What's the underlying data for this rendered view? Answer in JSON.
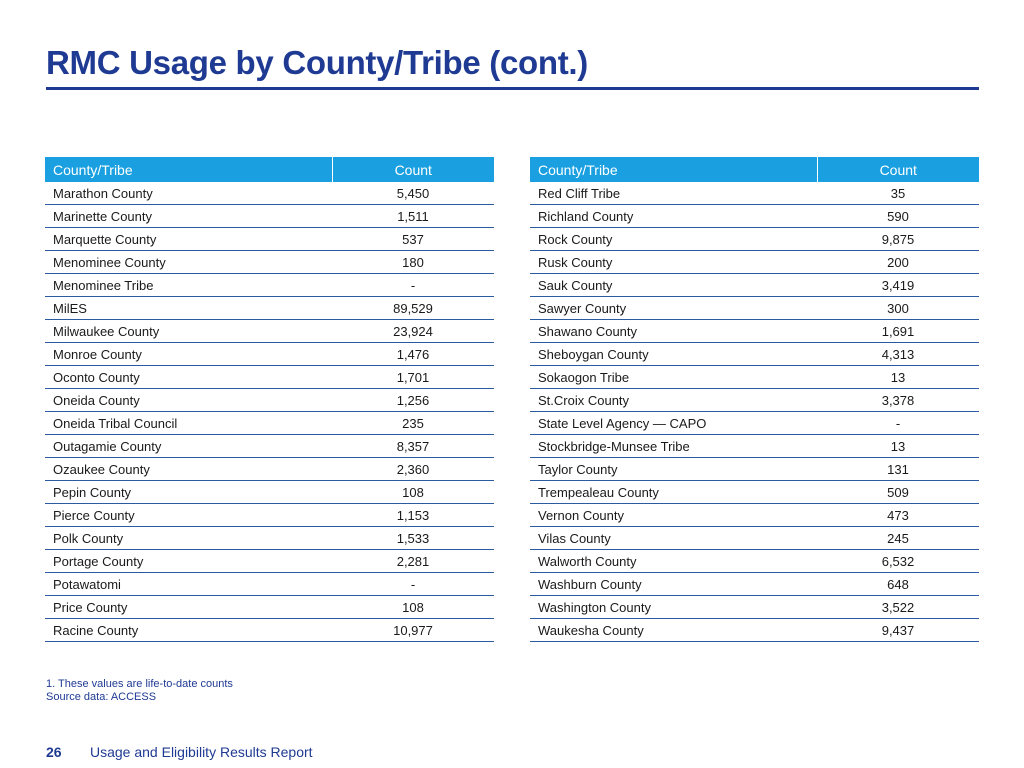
{
  "title": "RMC Usage by County/Tribe (cont.)",
  "tables": [
    {
      "headers": [
        "County/Tribe",
        "Count"
      ],
      "rows": [
        [
          "Marathon County",
          "5,450"
        ],
        [
          "Marinette County",
          "1,511"
        ],
        [
          "Marquette County",
          "537"
        ],
        [
          "Menominee County",
          "180"
        ],
        [
          "Menominee Tribe",
          "-"
        ],
        [
          "MilES",
          "89,529"
        ],
        [
          "Milwaukee County",
          "23,924"
        ],
        [
          "Monroe County",
          "1,476"
        ],
        [
          "Oconto County",
          "1,701"
        ],
        [
          "Oneida County",
          "1,256"
        ],
        [
          "Oneida Tribal Council",
          "235"
        ],
        [
          "Outagamie County",
          "8,357"
        ],
        [
          "Ozaukee County",
          "2,360"
        ],
        [
          "Pepin County",
          "108"
        ],
        [
          "Pierce County",
          "1,153"
        ],
        [
          "Polk County",
          "1,533"
        ],
        [
          "Portage County",
          "2,281"
        ],
        [
          "Potawatomi",
          "-"
        ],
        [
          "Price County",
          "108"
        ],
        [
          "Racine County",
          "10,977"
        ]
      ]
    },
    {
      "headers": [
        "County/Tribe",
        "Count"
      ],
      "rows": [
        [
          "Red Cliff Tribe",
          "35"
        ],
        [
          "Richland County",
          "590"
        ],
        [
          "Rock County",
          "9,875"
        ],
        [
          "Rusk County",
          "200"
        ],
        [
          "Sauk County",
          "3,419"
        ],
        [
          "Sawyer County",
          "300"
        ],
        [
          "Shawano County",
          "1,691"
        ],
        [
          "Sheboygan County",
          "4,313"
        ],
        [
          "Sokaogon  Tribe",
          "13"
        ],
        [
          "St.Croix County",
          "3,378"
        ],
        [
          "State Level Agency — CAPO",
          "-"
        ],
        [
          "Stockbridge-Munsee Tribe",
          "13"
        ],
        [
          "Taylor County",
          "131"
        ],
        [
          "Trempealeau County",
          "509"
        ],
        [
          "Vernon County",
          "473"
        ],
        [
          "Vilas County",
          "245"
        ],
        [
          "Walworth County",
          "6,532"
        ],
        [
          "Washburn County",
          "648"
        ],
        [
          "Washington County",
          "3,522"
        ],
        [
          "Waukesha County",
          "9,437"
        ]
      ]
    }
  ],
  "footnotes": [
    "1. These values are life-to-date counts",
    "Source data: ACCESS"
  ],
  "footer": {
    "page_number": "26",
    "report_title": "Usage and Eligibility Results Report"
  },
  "colors": {
    "title": "#1f3a93",
    "header_bg": "#1aa0e0",
    "row_rule": "#2c5aa0"
  }
}
